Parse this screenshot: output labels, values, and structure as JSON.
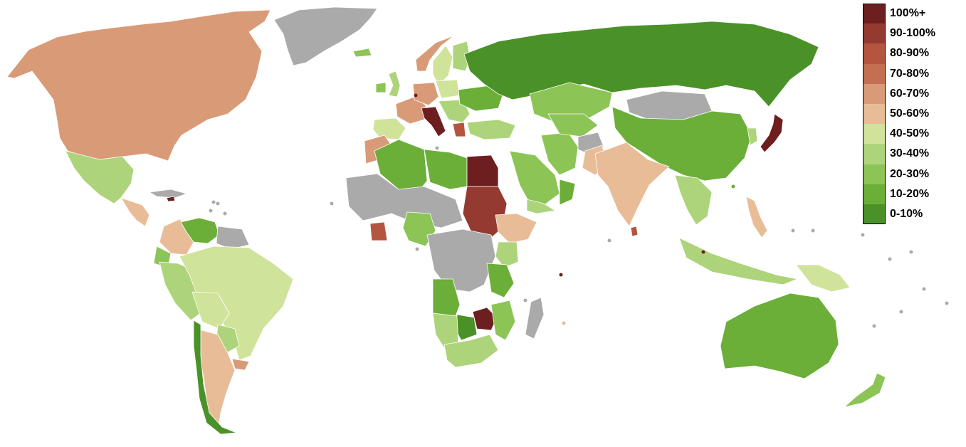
{
  "legend": [
    {
      "label": "100%+",
      "color": "#6d1f1f"
    },
    {
      "label": "90-100%",
      "color": "#943a30"
    },
    {
      "label": "80-90%",
      "color": "#b45540"
    },
    {
      "label": "70-80%",
      "color": "#c46e52"
    },
    {
      "label": "60-70%",
      "color": "#d99a78"
    },
    {
      "label": "50-60%",
      "color": "#e9bc98"
    },
    {
      "label": "40-50%",
      "color": "#d0e39a"
    },
    {
      "label": "30-40%",
      "color": "#add47a"
    },
    {
      "label": "20-30%",
      "color": "#8cc456"
    },
    {
      "label": "10-20%",
      "color": "#6bae38"
    },
    {
      "label": "0-10%",
      "color": "#4a9228"
    }
  ],
  "no_data_color": "#aaaaaa",
  "regions": [
    {
      "name": "Greenland",
      "bin": "none"
    },
    {
      "name": "North America",
      "bin": "60-70%"
    },
    {
      "name": "Mexico",
      "bin": "30-40%"
    },
    {
      "name": "Central America",
      "bin": "50-60%"
    },
    {
      "name": "Cuba",
      "bin": "none"
    },
    {
      "name": "Jamaica",
      "bin": "100%+"
    },
    {
      "name": "Colombia",
      "bin": "50-60%"
    },
    {
      "name": "Venezuela",
      "bin": "10-20%"
    },
    {
      "name": "Guianas",
      "bin": "none"
    },
    {
      "name": "Ecuador",
      "bin": "20-30%"
    },
    {
      "name": "Peru",
      "bin": "30-40%"
    },
    {
      "name": "Brazil",
      "bin": "40-50%"
    },
    {
      "name": "Bolivia",
      "bin": "40-50%"
    },
    {
      "name": "Paraguay",
      "bin": "30-40%"
    },
    {
      "name": "Uruguay",
      "bin": "60-70%"
    },
    {
      "name": "Argentina",
      "bin": "50-60%"
    },
    {
      "name": "Chile",
      "bin": "0-10%"
    },
    {
      "name": "Iceland",
      "bin": "20-30%"
    },
    {
      "name": "Norway",
      "bin": "60-70%"
    },
    {
      "name": "Sweden",
      "bin": "40-50%"
    },
    {
      "name": "Finland",
      "bin": "30-40%"
    },
    {
      "name": "United Kingdom",
      "bin": "30-40%"
    },
    {
      "name": "Ireland",
      "bin": "20-30%"
    },
    {
      "name": "France",
      "bin": "60-70%"
    },
    {
      "name": "Germany",
      "bin": "60-70%"
    },
    {
      "name": "Poland",
      "bin": "40-50%"
    },
    {
      "name": "Iberia",
      "bin": "40-50%"
    },
    {
      "name": "Italy",
      "bin": "100%+"
    },
    {
      "name": "Greece",
      "bin": "80-90%"
    },
    {
      "name": "Balkans",
      "bin": "30-40%"
    },
    {
      "name": "Ukraine",
      "bin": "10-20%"
    },
    {
      "name": "Turkey",
      "bin": "30-40%"
    },
    {
      "name": "Russia",
      "bin": "0-10%"
    },
    {
      "name": "Kazakhstan",
      "bin": "20-30%"
    },
    {
      "name": "Mongolia",
      "bin": "none"
    },
    {
      "name": "China",
      "bin": "10-20%"
    },
    {
      "name": "Japan",
      "bin": "100%+"
    },
    {
      "name": "Korea",
      "bin": "30-40%"
    },
    {
      "name": "Iran",
      "bin": "20-30%"
    },
    {
      "name": "Central Asia",
      "bin": "20-30%"
    },
    {
      "name": "Afghanistan",
      "bin": "none"
    },
    {
      "name": "Pakistan",
      "bin": "50-60%"
    },
    {
      "name": "India",
      "bin": "50-60%"
    },
    {
      "name": "Sri Lanka",
      "bin": "80-90%"
    },
    {
      "name": "Southeast Asia",
      "bin": "30-40%"
    },
    {
      "name": "Indonesia",
      "bin": "30-40%"
    },
    {
      "name": "Philippines",
      "bin": "50-60%"
    },
    {
      "name": "Papua New Guinea",
      "bin": "40-50%"
    },
    {
      "name": "Australia",
      "bin": "10-20%"
    },
    {
      "name": "New Zealand",
      "bin": "20-30%"
    },
    {
      "name": "Saudi Arabia",
      "bin": "20-30%"
    },
    {
      "name": "Oman",
      "bin": "10-20%"
    },
    {
      "name": "Yemen",
      "bin": "30-40%"
    },
    {
      "name": "Morocco",
      "bin": "60-70%"
    },
    {
      "name": "Algeria",
      "bin": "10-20%"
    },
    {
      "name": "Libya",
      "bin": "10-20%"
    },
    {
      "name": "Egypt",
      "bin": "100%+"
    },
    {
      "name": "Sudan",
      "bin": "90-100%"
    },
    {
      "name": "Ethiopia",
      "bin": "50-60%"
    },
    {
      "name": "Sahel",
      "bin": "none"
    },
    {
      "name": "Cote d'Ivoire",
      "bin": "80-90%"
    },
    {
      "name": "Nigeria",
      "bin": "20-30%"
    },
    {
      "name": "Central Africa",
      "bin": "none"
    },
    {
      "name": "Kenya",
      "bin": "30-40%"
    },
    {
      "name": "Tanzania",
      "bin": "10-20%"
    },
    {
      "name": "Angola",
      "bin": "10-20%"
    },
    {
      "name": "Zimbabwe",
      "bin": "100%+"
    },
    {
      "name": "Botswana",
      "bin": "0-10%"
    },
    {
      "name": "Namibia",
      "bin": "30-40%"
    },
    {
      "name": "South Africa",
      "bin": "30-40%"
    },
    {
      "name": "Mozambique",
      "bin": "20-30%"
    },
    {
      "name": "Madagascar",
      "bin": "none"
    }
  ]
}
